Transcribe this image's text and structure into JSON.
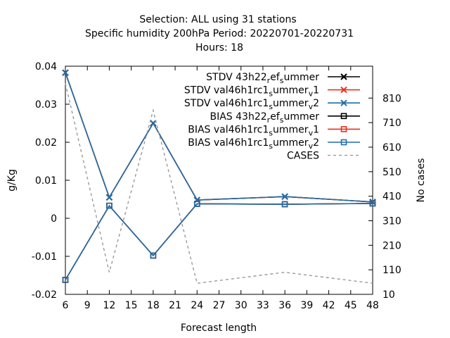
{
  "chart_data": {
    "type": "line",
    "title_lines": [
      "Selection: ALL using    31 stations",
      "Specific humidity 200hPa   Period: 20220701-20220731",
      "Hours:  18"
    ],
    "xlabel": "Forecast length",
    "ylabel": "g/Kg",
    "y2label": "No cases",
    "xlim": [
      6,
      48
    ],
    "ylim": [
      -0.02,
      0.04
    ],
    "y2lim": [
      10,
      940
    ],
    "x_ticks": [
      6,
      9,
      12,
      15,
      18,
      21,
      24,
      27,
      30,
      33,
      36,
      39,
      42,
      45,
      48
    ],
    "x_tick_labels": [
      "6",
      "9",
      "12",
      "15",
      "18",
      "21",
      "24",
      "27",
      "30",
      "33",
      "36",
      "39",
      "42",
      "45",
      "48"
    ],
    "y_ticks": [
      -0.02,
      -0.01,
      0,
      0.01,
      0.02,
      0.03,
      0.04
    ],
    "y_tick_labels": [
      "-0.02",
      "-0.01",
      "0",
      "0.01",
      "0.02",
      "0.03",
      "0.04"
    ],
    "y2_ticks": [
      10,
      110,
      210,
      310,
      410,
      510,
      610,
      710,
      810
    ],
    "y2_tick_labels": [
      "10",
      "110",
      "210",
      "310",
      "410",
      "510",
      "610",
      "710",
      "810"
    ],
    "grid": false,
    "legend_position": "top-right",
    "series": [
      {
        "name_main": "STDV 43h22",
        "name_sub1": "r",
        "name_mid": "ef",
        "name_sub2": "s",
        "name_end": "ummer",
        "color": "#000000",
        "marker": "x",
        "dash": false,
        "axis": "y1",
        "x": [
          6,
          12,
          18,
          24,
          36,
          48
        ],
        "y": [
          0.0383,
          0.0055,
          0.025,
          0.0048,
          0.0057,
          0.0043
        ]
      },
      {
        "name_main": "STDV val46h1rc1",
        "name_sub1": "s",
        "name_mid": "ummer",
        "name_sub2": "v",
        "name_end": "1",
        "color": "#e8301f",
        "marker": "x",
        "dash": false,
        "axis": "y1",
        "x": [
          6,
          12,
          18,
          24,
          36,
          48
        ],
        "y": [
          0.0383,
          0.0055,
          0.025,
          0.0048,
          0.0057,
          0.0043
        ]
      },
      {
        "name_main": "STDV val46h1rc1",
        "name_sub1": "s",
        "name_mid": "ummer",
        "name_sub2": "v",
        "name_end": "2",
        "color": "#1f6ea8",
        "marker": "x",
        "dash": false,
        "axis": "y1",
        "x": [
          6,
          12,
          18,
          24,
          36,
          48
        ],
        "y": [
          0.0383,
          0.0055,
          0.025,
          0.0048,
          0.0057,
          0.0043
        ]
      },
      {
        "name_main": "BIAS 43h22",
        "name_sub1": "r",
        "name_mid": "ef",
        "name_sub2": "s",
        "name_end": "ummer",
        "color": "#000000",
        "marker": "square",
        "dash": false,
        "axis": "y1",
        "x": [
          6,
          12,
          18,
          24,
          36,
          48
        ],
        "y": [
          -0.0162,
          0.0033,
          -0.0098,
          0.0038,
          0.0037,
          0.0039
        ]
      },
      {
        "name_main": "BIAS val46h1rc1",
        "name_sub1": "s",
        "name_mid": "ummer",
        "name_sub2": "v",
        "name_end": "1",
        "color": "#e8301f",
        "marker": "square",
        "dash": false,
        "axis": "y1",
        "x": [
          6,
          12,
          18,
          24,
          36,
          48
        ],
        "y": [
          -0.0162,
          0.0033,
          -0.0098,
          0.0038,
          0.0037,
          0.0039
        ]
      },
      {
        "name_main": "BIAS val46h1rc1",
        "name_sub1": "s",
        "name_mid": "ummer",
        "name_sub2": "v",
        "name_end": "2",
        "color": "#1f6ea8",
        "marker": "square",
        "dash": false,
        "axis": "y1",
        "x": [
          6,
          12,
          18,
          24,
          36,
          48
        ],
        "y": [
          -0.0162,
          0.0033,
          -0.0098,
          0.0038,
          0.0037,
          0.0039
        ]
      },
      {
        "name_main": "CASES",
        "name_sub1": "",
        "name_mid": "",
        "name_sub2": "",
        "name_end": "",
        "color": "#999999",
        "marker": "none",
        "dash": true,
        "axis": "y2",
        "x": [
          6,
          12,
          18,
          24,
          36,
          48
        ],
        "y": [
          870,
          100,
          760,
          55,
          100,
          55
        ]
      }
    ]
  }
}
